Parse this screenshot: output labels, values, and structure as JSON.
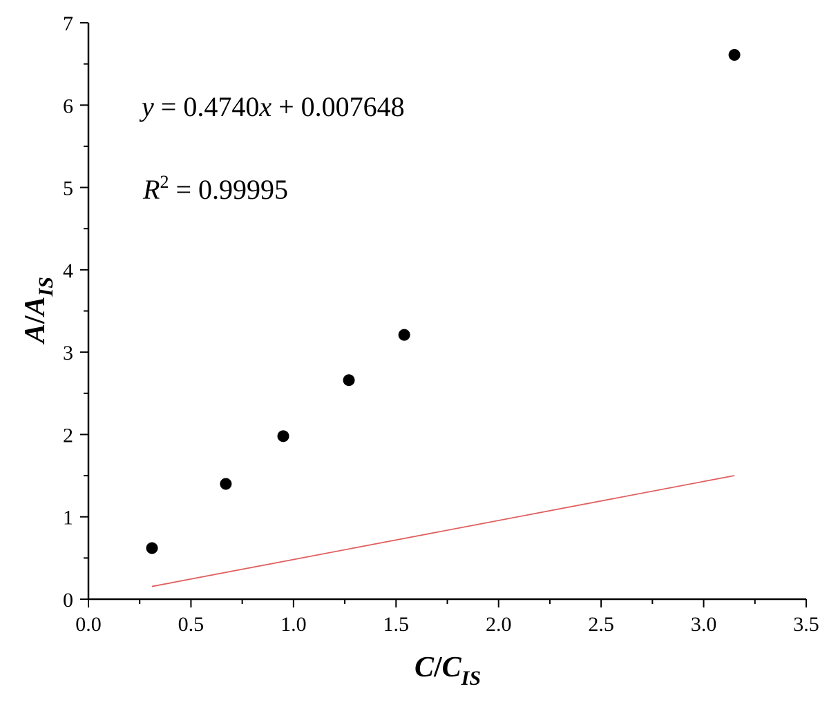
{
  "chart_data": {
    "type": "scatter",
    "xlabel": {
      "main": "C",
      "slash": "/",
      "base": "C",
      "sub": "IS"
    },
    "ylabel": {
      "main": "A",
      "slash": "/",
      "base": "A",
      "sub": "IS"
    },
    "xlim": [
      0,
      3.5
    ],
    "ylim": [
      0,
      7
    ],
    "x_ticks": [
      "0.0",
      "0.5",
      "1.0",
      "1.5",
      "2.0",
      "2.5",
      "3.0",
      "3.5"
    ],
    "y_ticks": [
      "0",
      "1",
      "2",
      "3",
      "4",
      "5",
      "6",
      "7"
    ],
    "grid": false,
    "legend": "none",
    "series": [
      {
        "points": [
          {
            "x": 0.31,
            "y": 0.62
          },
          {
            "x": 0.67,
            "y": 1.4
          },
          {
            "x": 0.95,
            "y": 1.98
          },
          {
            "x": 1.27,
            "y": 2.66
          },
          {
            "x": 1.54,
            "y": 3.21
          },
          {
            "x": 3.15,
            "y": 6.61
          }
        ],
        "marker_color": "#000000"
      }
    ],
    "fit_line": {
      "slope": 0.474,
      "intercept": 0.007648,
      "x_range": [
        0.31,
        3.15
      ],
      "color": "#e06060"
    },
    "annotations": {
      "equation": {
        "y": "y",
        "eq": " = 0.4740",
        "x": "x",
        "rest": " + 0.007648"
      },
      "r_squared": {
        "r": "R",
        "sup": "2",
        "rest": " = 0.99995"
      }
    }
  }
}
